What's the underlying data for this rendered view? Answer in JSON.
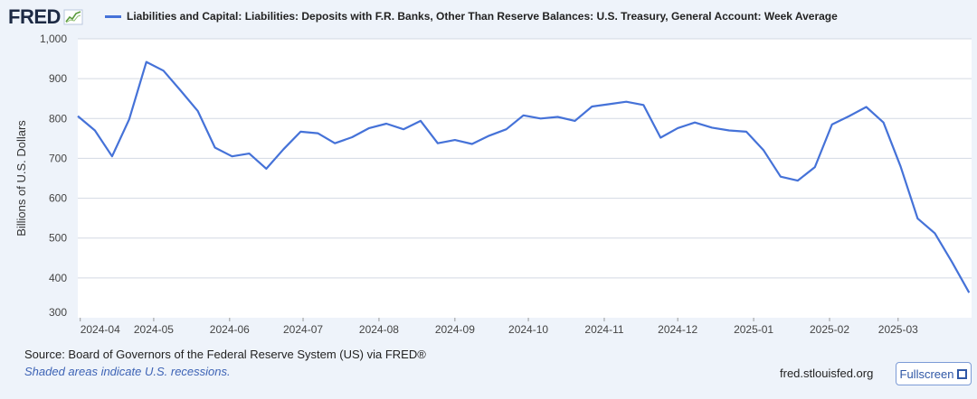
{
  "header": {
    "logo_text": "FRED",
    "logo_icon": "fred-sparkline-icon"
  },
  "chart_data": {
    "type": "line",
    "title": "",
    "xlabel": "",
    "ylabel": "Billions of U.S. Dollars",
    "ylim": [
      300,
      1000
    ],
    "yticks": [
      300,
      400,
      500,
      600,
      700,
      800,
      900,
      1000
    ],
    "ytick_labels": [
      "300",
      "400",
      "500",
      "600",
      "700",
      "800",
      "900",
      "1,000"
    ],
    "xlim": [
      "2024-03-31",
      "2025-03-31"
    ],
    "xticks": [
      "2024-04-01",
      "2024-05-01",
      "2024-06-01",
      "2024-07-01",
      "2024-08-01",
      "2024-09-01",
      "2024-10-01",
      "2024-11-01",
      "2024-12-01",
      "2025-01-01",
      "2025-02-01",
      "2025-03-01"
    ],
    "xtick_labels": [
      "2024-04",
      "2024-05",
      "2024-06",
      "2024-07",
      "2024-08",
      "2024-09",
      "2024-10",
      "2024-11",
      "2024-12",
      "2025-01",
      "2025-02",
      "2025-03"
    ],
    "grid": "horizontal",
    "legend_position": "top-left",
    "line_color": "#4572d8",
    "series": [
      {
        "name": "Liabilities and Capital: Liabilities: Deposits with F.R. Banks, Other Than Reserve Balances: U.S. Treasury, General Account: Week Average",
        "x": [
          "2024-03-31",
          "2024-04-07",
          "2024-04-14",
          "2024-04-21",
          "2024-04-28",
          "2024-05-05",
          "2024-05-12",
          "2024-05-19",
          "2024-05-26",
          "2024-06-02",
          "2024-06-09",
          "2024-06-16",
          "2024-06-23",
          "2024-06-30",
          "2024-07-07",
          "2024-07-14",
          "2024-07-21",
          "2024-07-28",
          "2024-08-04",
          "2024-08-11",
          "2024-08-18",
          "2024-08-25",
          "2024-09-01",
          "2024-09-08",
          "2024-09-15",
          "2024-09-22",
          "2024-09-29",
          "2024-10-06",
          "2024-10-13",
          "2024-10-20",
          "2024-10-27",
          "2024-11-03",
          "2024-11-10",
          "2024-11-17",
          "2024-11-24",
          "2024-12-01",
          "2024-12-08",
          "2024-12-15",
          "2024-12-22",
          "2024-12-29",
          "2025-01-05",
          "2025-01-12",
          "2025-01-19",
          "2025-01-26",
          "2025-02-02",
          "2025-02-09",
          "2025-02-16",
          "2025-02-23",
          "2025-03-02",
          "2025-03-09",
          "2025-03-16",
          "2025-03-23",
          "2025-03-30"
        ],
        "values": [
          806,
          770,
          705,
          798,
          942,
          920,
          870,
          819,
          727,
          705,
          712,
          674,
          723,
          767,
          763,
          738,
          753,
          776,
          787,
          773,
          794,
          738,
          746,
          736,
          757,
          773,
          808,
          800,
          804,
          794,
          830,
          836,
          842,
          834,
          752,
          776,
          790,
          777,
          770,
          767,
          721,
          654,
          644,
          678,
          785,
          806,
          829,
          790,
          680,
          549,
          512,
          440,
          363
        ]
      }
    ]
  },
  "footer": {
    "source": "Source: Board of Governors of the Federal Reserve System (US) via FRED®",
    "shaded_note": "Shaded areas indicate U.S. recessions.",
    "site": "fred.stlouisfed.org",
    "fullscreen_label": "Fullscreen",
    "fullscreen_icon": "fullscreen-icon"
  }
}
